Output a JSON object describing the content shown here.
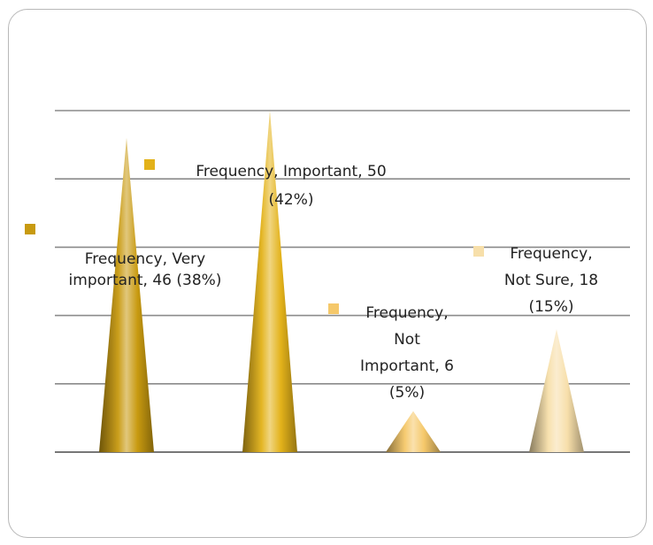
{
  "chart_data": {
    "type": "bar",
    "shape": "cone",
    "series": [
      {
        "name": "Frequency",
        "values": [
          46,
          50,
          6,
          18
        ]
      }
    ],
    "categories": [
      "Very important",
      "Important",
      "Not Important",
      "Not Sure"
    ],
    "percents": [
      "38%",
      "42%",
      "5%",
      "15%"
    ],
    "colors": [
      "#c89a10",
      "#e3b21a",
      "#f5c86a",
      "#f7dfaa"
    ],
    "ylim": [
      0,
      50
    ],
    "grid": true,
    "data_labels": [
      [
        "Frequency, Very",
        "important, 46 (38%)"
      ],
      [
        "Frequency, Important, 50",
        "(42%)"
      ],
      [
        "Frequency,",
        "Not",
        "Important, 6",
        "(5%)"
      ],
      [
        "Frequency,",
        "Not Sure, 18",
        "(15%)"
      ]
    ]
  }
}
